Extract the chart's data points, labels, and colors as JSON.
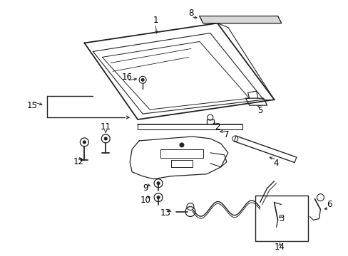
{
  "background_color": "#ffffff",
  "line_color": "#222222",
  "figsize": [
    4.89,
    3.6
  ],
  "dpi": 100,
  "label_fontsize": 8.5
}
